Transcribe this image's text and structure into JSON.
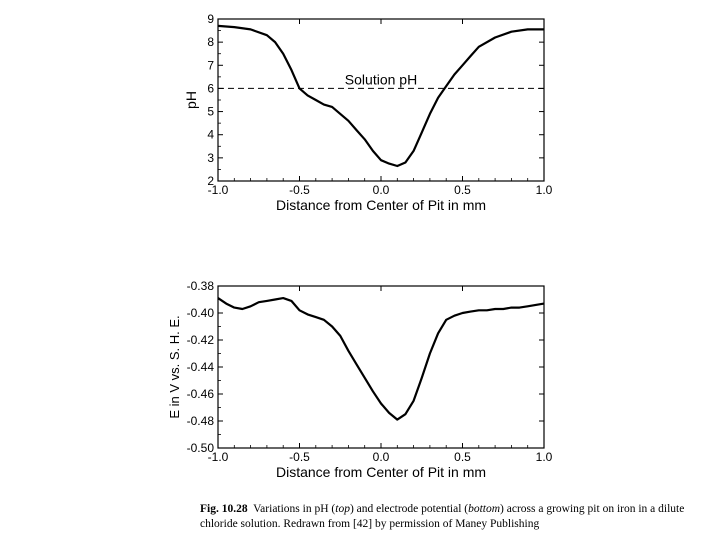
{
  "caption": {
    "label": "Fig. 10.28",
    "t1": "Variations in pH (",
    "top": "top",
    "t2": ") and electrode potential (",
    "bottom": "bottom",
    "t3": ") across a growing pit on iron in a dilute chloride solution. Redrawn from [42] by permission of Maney Publishing"
  },
  "chart_data": [
    {
      "type": "line",
      "title": "",
      "xlabel": "Distance from Center of Pit in mm",
      "ylabel": "pH",
      "xlim": [
        -1.0,
        1.0
      ],
      "ylim": [
        2,
        9
      ],
      "xticks": [
        -1.0,
        -0.5,
        0.0,
        0.5,
        1.0
      ],
      "xtick_labels": [
        "-1.0",
        "-0.5",
        "0.0",
        "0.5",
        "1.0"
      ],
      "yticks": [
        2,
        3,
        4,
        5,
        6,
        7,
        8,
        9
      ],
      "ytick_labels": [
        "2",
        "3",
        "4",
        "5",
        "6",
        "7",
        "8",
        "9"
      ],
      "grid": false,
      "series": [
        {
          "x": [
            -1.0,
            -0.9,
            -0.8,
            -0.7,
            -0.65,
            -0.6,
            -0.55,
            -0.5,
            -0.45,
            -0.4,
            -0.35,
            -0.3,
            -0.25,
            -0.2,
            -0.15,
            -0.1,
            -0.05,
            0.0,
            0.05,
            0.1,
            0.15,
            0.2,
            0.25,
            0.3,
            0.35,
            0.4,
            0.45,
            0.5,
            0.55,
            0.6,
            0.7,
            0.8,
            0.9,
            1.0
          ],
          "y": [
            8.7,
            8.65,
            8.55,
            8.3,
            8.0,
            7.5,
            6.8,
            6.0,
            5.7,
            5.5,
            5.3,
            5.2,
            4.9,
            4.6,
            4.2,
            3.8,
            3.3,
            2.9,
            2.75,
            2.65,
            2.8,
            3.3,
            4.1,
            4.9,
            5.6,
            6.1,
            6.6,
            7.0,
            7.4,
            7.8,
            8.2,
            8.45,
            8.55,
            8.55
          ]
        }
      ],
      "reference_line": {
        "y": 6.0,
        "style": "dashed",
        "label": "Solution pH"
      }
    },
    {
      "type": "line",
      "title": "",
      "xlabel": "Distance from Center of Pit in mm",
      "ylabel": "E in V vs. S. H. E.",
      "xlim": [
        -1.0,
        1.0
      ],
      "ylim": [
        -0.5,
        -0.38
      ],
      "xticks": [
        -1.0,
        -0.5,
        0.0,
        0.5,
        1.0
      ],
      "xtick_labels": [
        "-1.0",
        "-0.5",
        "0.0",
        "0.5",
        "1.0"
      ],
      "yticks": [
        -0.5,
        -0.48,
        -0.46,
        -0.44,
        -0.42,
        -0.4,
        -0.38
      ],
      "ytick_labels": [
        "-0.50",
        "-0.48",
        "-0.46",
        "-0.44",
        "-0.42",
        "-0.40",
        "-0.38"
      ],
      "grid": false,
      "series": [
        {
          "x": [
            -1.0,
            -0.95,
            -0.9,
            -0.85,
            -0.8,
            -0.75,
            -0.7,
            -0.65,
            -0.6,
            -0.55,
            -0.5,
            -0.45,
            -0.4,
            -0.35,
            -0.3,
            -0.25,
            -0.2,
            -0.15,
            -0.1,
            -0.05,
            0.0,
            0.05,
            0.1,
            0.15,
            0.2,
            0.25,
            0.3,
            0.35,
            0.4,
            0.45,
            0.5,
            0.55,
            0.6,
            0.65,
            0.7,
            0.75,
            0.8,
            0.85,
            0.9,
            0.95,
            1.0
          ],
          "y": [
            -0.389,
            -0.393,
            -0.396,
            -0.397,
            -0.395,
            -0.392,
            -0.391,
            -0.39,
            -0.389,
            -0.391,
            -0.398,
            -0.401,
            -0.403,
            -0.405,
            -0.41,
            -0.417,
            -0.428,
            -0.438,
            -0.448,
            -0.458,
            -0.467,
            -0.474,
            -0.479,
            -0.475,
            -0.465,
            -0.448,
            -0.43,
            -0.415,
            -0.405,
            -0.402,
            -0.4,
            -0.399,
            -0.398,
            -0.398,
            -0.397,
            -0.397,
            -0.396,
            -0.396,
            -0.395,
            -0.394,
            -0.393
          ]
        }
      ]
    }
  ]
}
